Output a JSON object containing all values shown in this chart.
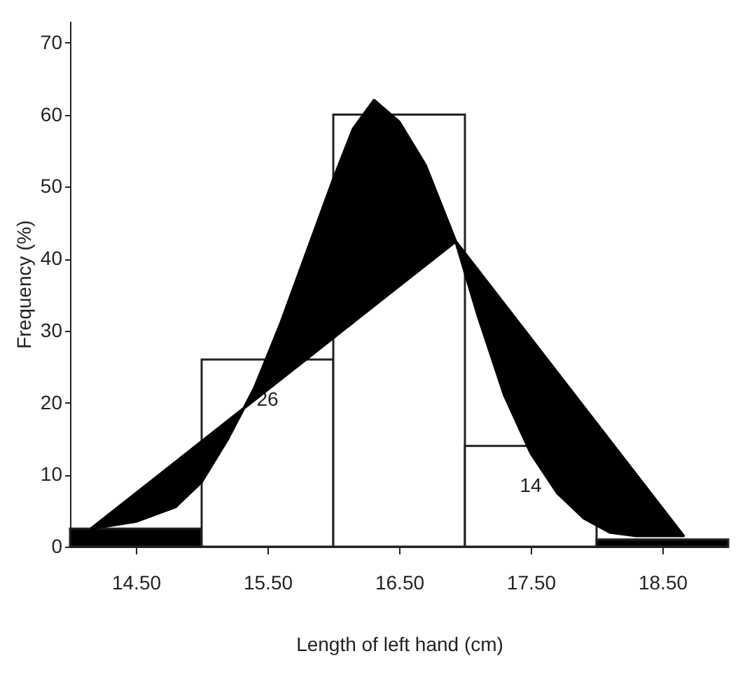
{
  "chart_data": {
    "type": "histogram",
    "xlabel": "Length of left hand (cm)",
    "ylabel": "Frequency (%)",
    "bins": [
      14,
      15,
      16,
      17,
      18,
      19
    ],
    "values": [
      2.5,
      26,
      60,
      14,
      1
    ],
    "colors": [
      "#000000",
      "#ffffff",
      "#ffffff",
      "#ffffff",
      "#000000"
    ],
    "value_labels": [
      null,
      "26",
      null,
      "14",
      null
    ],
    "series": [
      {
        "type": "area",
        "color": "#000000",
        "x": [
          14.16,
          14.5,
          14.8,
          15.0,
          15.2,
          15.4,
          15.6,
          15.8,
          16.0,
          16.15,
          16.31,
          16.5,
          16.7,
          16.93,
          17.1,
          17.3,
          17.5,
          17.7,
          17.9,
          18.1,
          18.3,
          18.66,
          16.93,
          14.16
        ],
        "values": [
          2.5,
          3.5,
          5.5,
          9,
          15,
          22,
          31,
          41,
          51,
          58,
          62,
          59,
          53,
          42.4,
          32,
          21,
          13,
          7.5,
          4,
          2,
          1.5,
          1.5,
          42.4,
          2.5
        ]
      }
    ],
    "xlim": [
      14,
      19
    ],
    "ylim": [
      0,
      73
    ],
    "xticks": [
      {
        "value": 14.5,
        "label": "14.50"
      },
      {
        "value": 15.5,
        "label": "15.50"
      },
      {
        "value": 16.5,
        "label": "16.50"
      },
      {
        "value": 17.5,
        "label": "17.50"
      },
      {
        "value": 18.5,
        "label": "18.50"
      }
    ],
    "yticks": [
      0,
      10,
      20,
      30,
      40,
      50,
      60,
      70
    ],
    "grid": false
  }
}
